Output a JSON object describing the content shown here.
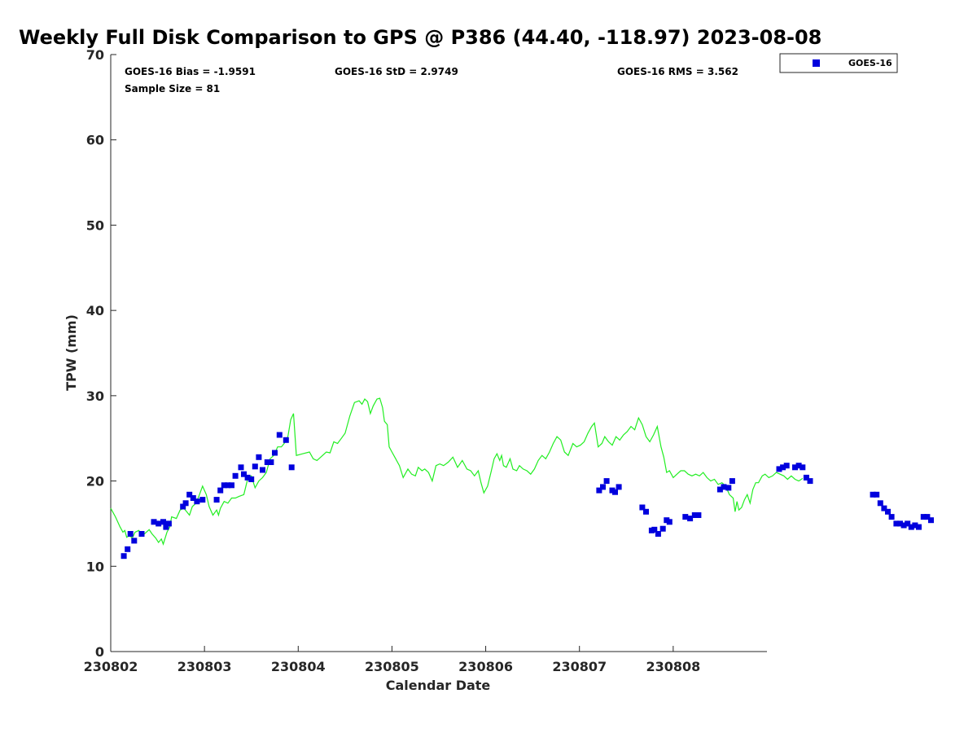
{
  "chart_data": {
    "type": "line",
    "title": "Weekly Full Disk Comparison to GPS @ P386 (44.40, -118.97) 2023-08-08",
    "xlabel": "Calendar Date",
    "ylabel": "TPW (mm)",
    "xlim": [
      "230802",
      "230809"
    ],
    "ylim": [
      0,
      70
    ],
    "x_ticks": [
      "230802",
      "230803",
      "230804",
      "230805",
      "230806",
      "230807",
      "230808"
    ],
    "y_ticks": [
      0,
      10,
      20,
      30,
      40,
      50,
      60,
      70
    ],
    "grid": false,
    "legend_position": "top-right outside",
    "stats": {
      "bias": "GOES-16 Bias = -1.9591",
      "std": "GOES-16 StD = 2.9749",
      "rms": "GOES-16 RMS = 3.562",
      "sample": "Sample Size = 81"
    },
    "series": [
      {
        "name": "GOES-16",
        "kind": "scatter",
        "color": "#0000dd",
        "points": [
          [
            0.14,
            11.2
          ],
          [
            0.18,
            12.0
          ],
          [
            0.21,
            13.8
          ],
          [
            0.25,
            13.0
          ],
          [
            0.33,
            13.8
          ],
          [
            0.46,
            15.2
          ],
          [
            0.51,
            15.0
          ],
          [
            0.56,
            15.2
          ],
          [
            0.59,
            14.6
          ],
          [
            0.62,
            15.0
          ],
          [
            0.77,
            17.0
          ],
          [
            0.8,
            17.4
          ],
          [
            0.84,
            18.4
          ],
          [
            0.88,
            18.0
          ],
          [
            0.92,
            17.6
          ],
          [
            0.98,
            17.8
          ],
          [
            1.13,
            17.8
          ],
          [
            1.17,
            18.9
          ],
          [
            1.21,
            19.5
          ],
          [
            1.25,
            19.5
          ],
          [
            1.29,
            19.5
          ],
          [
            1.33,
            20.6
          ],
          [
            1.39,
            21.6
          ],
          [
            1.42,
            20.8
          ],
          [
            1.46,
            20.4
          ],
          [
            1.5,
            20.2
          ],
          [
            1.54,
            21.7
          ],
          [
            1.58,
            22.8
          ],
          [
            1.62,
            21.3
          ],
          [
            1.67,
            22.2
          ],
          [
            1.71,
            22.2
          ],
          [
            1.75,
            23.3
          ],
          [
            1.8,
            25.4
          ],
          [
            1.87,
            24.8
          ],
          [
            1.93,
            21.6
          ],
          [
            5.21,
            18.9
          ],
          [
            5.25,
            19.3
          ],
          [
            5.29,
            20.0
          ],
          [
            5.35,
            18.9
          ],
          [
            5.38,
            18.7
          ],
          [
            5.42,
            19.3
          ],
          [
            5.67,
            16.9
          ],
          [
            5.71,
            16.4
          ],
          [
            5.77,
            14.2
          ],
          [
            5.8,
            14.3
          ],
          [
            5.84,
            13.8
          ],
          [
            5.89,
            14.4
          ],
          [
            5.93,
            15.4
          ],
          [
            5.96,
            15.2
          ],
          [
            6.13,
            15.8
          ],
          [
            6.18,
            15.6
          ],
          [
            6.23,
            16.0
          ],
          [
            6.27,
            16.0
          ],
          [
            6.5,
            19.0
          ],
          [
            6.54,
            19.3
          ],
          [
            6.59,
            19.2
          ],
          [
            6.63,
            20.0
          ],
          [
            7.13,
            21.4
          ],
          [
            7.17,
            21.6
          ],
          [
            7.21,
            21.8
          ],
          [
            7.3,
            21.6
          ],
          [
            7.34,
            21.8
          ],
          [
            7.38,
            21.6
          ],
          [
            7.42,
            20.4
          ],
          [
            7.46,
            20.0
          ],
          [
            8.13,
            18.4
          ],
          [
            8.17,
            18.4
          ],
          [
            8.21,
            17.4
          ],
          [
            8.25,
            16.8
          ],
          [
            8.29,
            16.4
          ],
          [
            8.33,
            15.8
          ],
          [
            8.38,
            15.0
          ],
          [
            8.42,
            15.0
          ],
          [
            8.46,
            14.8
          ],
          [
            8.5,
            15.0
          ],
          [
            8.54,
            14.6
          ],
          [
            8.58,
            14.8
          ],
          [
            8.62,
            14.6
          ],
          [
            8.67,
            15.8
          ],
          [
            8.71,
            15.8
          ],
          [
            8.75,
            15.4
          ]
        ]
      },
      {
        "kind": "line",
        "color": "#22ee22",
        "points": [
          [
            0.0,
            16.8
          ],
          [
            0.05,
            15.8
          ],
          [
            0.1,
            14.6
          ],
          [
            0.13,
            14.0
          ],
          [
            0.15,
            14.2
          ],
          [
            0.17,
            13.4
          ],
          [
            0.2,
            13.6
          ],
          [
            0.23,
            13.3
          ],
          [
            0.26,
            14.0
          ],
          [
            0.3,
            14.2
          ],
          [
            0.34,
            13.6
          ],
          [
            0.37,
            13.9
          ],
          [
            0.41,
            14.3
          ],
          [
            0.44,
            13.8
          ],
          [
            0.48,
            13.3
          ],
          [
            0.51,
            12.8
          ],
          [
            0.54,
            13.2
          ],
          [
            0.56,
            12.6
          ],
          [
            0.6,
            14.0
          ],
          [
            0.63,
            14.6
          ],
          [
            0.65,
            15.8
          ],
          [
            0.7,
            15.6
          ],
          [
            0.74,
            16.6
          ],
          [
            0.78,
            16.8
          ],
          [
            0.81,
            16.4
          ],
          [
            0.84,
            16.0
          ],
          [
            0.87,
            17.0
          ],
          [
            0.91,
            17.4
          ],
          [
            0.94,
            18.2
          ],
          [
            0.98,
            19.4
          ],
          [
            1.02,
            18.4
          ],
          [
            1.05,
            17.0
          ],
          [
            1.09,
            16.0
          ],
          [
            1.13,
            16.6
          ],
          [
            1.15,
            16.0
          ],
          [
            1.17,
            16.8
          ],
          [
            1.21,
            17.6
          ],
          [
            1.25,
            17.4
          ],
          [
            1.29,
            18.0
          ],
          [
            1.33,
            18.0
          ],
          [
            1.37,
            18.2
          ],
          [
            1.42,
            18.4
          ],
          [
            1.46,
            20.2
          ],
          [
            1.5,
            20.6
          ],
          [
            1.54,
            19.2
          ],
          [
            1.58,
            20.0
          ],
          [
            1.62,
            20.4
          ],
          [
            1.66,
            21.0
          ],
          [
            1.7,
            22.6
          ],
          [
            1.74,
            23.0
          ],
          [
            1.78,
            24.0
          ],
          [
            1.82,
            24.0
          ],
          [
            1.85,
            24.4
          ],
          [
            1.89,
            25.2
          ],
          [
            1.92,
            27.2
          ],
          [
            1.95,
            27.9
          ],
          [
            1.98,
            23.0
          ],
          [
            2.05,
            23.2
          ],
          [
            2.12,
            23.4
          ],
          [
            2.16,
            22.6
          ],
          [
            2.2,
            22.4
          ],
          [
            2.25,
            22.9
          ],
          [
            2.3,
            23.4
          ],
          [
            2.34,
            23.3
          ],
          [
            2.38,
            24.6
          ],
          [
            2.42,
            24.4
          ],
          [
            2.46,
            25.0
          ],
          [
            2.5,
            25.6
          ],
          [
            2.55,
            27.6
          ],
          [
            2.6,
            29.2
          ],
          [
            2.65,
            29.4
          ],
          [
            2.68,
            29.0
          ],
          [
            2.71,
            29.6
          ],
          [
            2.74,
            29.3
          ],
          [
            2.77,
            27.9
          ],
          [
            2.8,
            28.8
          ],
          [
            2.84,
            29.6
          ],
          [
            2.87,
            29.7
          ],
          [
            2.9,
            28.6
          ],
          [
            2.92,
            27.0
          ],
          [
            2.95,
            26.6
          ],
          [
            2.97,
            24.0
          ],
          [
            3.0,
            23.4
          ],
          [
            3.03,
            22.8
          ],
          [
            3.08,
            21.8
          ],
          [
            3.12,
            20.4
          ],
          [
            3.17,
            21.4
          ],
          [
            3.21,
            20.8
          ],
          [
            3.25,
            20.6
          ],
          [
            3.28,
            21.6
          ],
          [
            3.32,
            21.2
          ],
          [
            3.35,
            21.4
          ],
          [
            3.39,
            21.0
          ],
          [
            3.43,
            20.0
          ],
          [
            3.47,
            21.8
          ],
          [
            3.51,
            22.0
          ],
          [
            3.55,
            21.8
          ],
          [
            3.6,
            22.2
          ],
          [
            3.65,
            22.8
          ],
          [
            3.7,
            21.6
          ],
          [
            3.75,
            22.4
          ],
          [
            3.8,
            21.4
          ],
          [
            3.84,
            21.2
          ],
          [
            3.88,
            20.6
          ],
          [
            3.92,
            21.2
          ],
          [
            3.95,
            19.8
          ],
          [
            3.98,
            18.6
          ],
          [
            4.02,
            19.4
          ],
          [
            4.06,
            21.2
          ],
          [
            4.09,
            22.6
          ],
          [
            4.12,
            23.2
          ],
          [
            4.15,
            22.4
          ],
          [
            4.17,
            23.0
          ],
          [
            4.19,
            21.8
          ],
          [
            4.22,
            21.6
          ],
          [
            4.26,
            22.6
          ],
          [
            4.29,
            21.4
          ],
          [
            4.33,
            21.2
          ],
          [
            4.36,
            21.8
          ],
          [
            4.4,
            21.4
          ],
          [
            4.44,
            21.2
          ],
          [
            4.48,
            20.8
          ],
          [
            4.52,
            21.4
          ],
          [
            4.56,
            22.4
          ],
          [
            4.6,
            23.0
          ],
          [
            4.64,
            22.6
          ],
          [
            4.68,
            23.4
          ],
          [
            4.72,
            24.4
          ],
          [
            4.76,
            25.2
          ],
          [
            4.8,
            24.8
          ],
          [
            4.84,
            23.4
          ],
          [
            4.88,
            23.0
          ],
          [
            4.93,
            24.4
          ],
          [
            4.97,
            24.0
          ],
          [
            5.01,
            24.2
          ],
          [
            5.05,
            24.6
          ],
          [
            5.09,
            25.6
          ],
          [
            5.13,
            26.4
          ],
          [
            5.16,
            26.8
          ],
          [
            5.2,
            24.0
          ],
          [
            5.24,
            24.4
          ],
          [
            5.27,
            25.2
          ],
          [
            5.31,
            24.6
          ],
          [
            5.35,
            24.2
          ],
          [
            5.39,
            25.2
          ],
          [
            5.43,
            24.8
          ],
          [
            5.47,
            25.4
          ],
          [
            5.51,
            25.8
          ],
          [
            5.55,
            26.4
          ],
          [
            5.59,
            26.0
          ],
          [
            5.63,
            27.4
          ],
          [
            5.67,
            26.6
          ],
          [
            5.71,
            25.2
          ],
          [
            5.75,
            24.6
          ],
          [
            5.79,
            25.4
          ],
          [
            5.83,
            26.4
          ],
          [
            5.87,
            24.0
          ],
          [
            5.9,
            22.8
          ],
          [
            5.93,
            21.0
          ],
          [
            5.96,
            21.2
          ],
          [
            6.0,
            20.4
          ],
          [
            6.04,
            20.8
          ],
          [
            6.08,
            21.2
          ],
          [
            6.12,
            21.2
          ],
          [
            6.16,
            20.8
          ],
          [
            6.2,
            20.6
          ],
          [
            6.24,
            20.8
          ],
          [
            6.28,
            20.6
          ],
          [
            6.32,
            21.0
          ],
          [
            6.36,
            20.4
          ],
          [
            6.4,
            20.0
          ],
          [
            6.44,
            20.2
          ],
          [
            6.48,
            19.6
          ],
          [
            6.52,
            19.8
          ],
          [
            6.56,
            19.4
          ],
          [
            6.6,
            18.4
          ],
          [
            6.64,
            18.0
          ],
          [
            6.66,
            16.4
          ],
          [
            6.68,
            17.6
          ],
          [
            6.7,
            16.6
          ],
          [
            6.73,
            16.9
          ],
          [
            6.76,
            17.8
          ],
          [
            6.79,
            18.4
          ],
          [
            6.82,
            17.4
          ],
          [
            6.85,
            19.0
          ],
          [
            6.88,
            19.8
          ],
          [
            6.91,
            19.8
          ],
          [
            6.95,
            20.6
          ],
          [
            6.98,
            20.8
          ],
          [
            7.02,
            20.4
          ],
          [
            7.06,
            20.6
          ],
          [
            7.1,
            21.0
          ],
          [
            7.14,
            20.8
          ],
          [
            7.18,
            20.6
          ],
          [
            7.22,
            20.2
          ],
          [
            7.26,
            20.6
          ],
          [
            7.3,
            20.2
          ],
          [
            7.34,
            20.0
          ],
          [
            7.38,
            20.3
          ]
        ]
      }
    ]
  },
  "legend": {
    "label": "GOES-16"
  }
}
